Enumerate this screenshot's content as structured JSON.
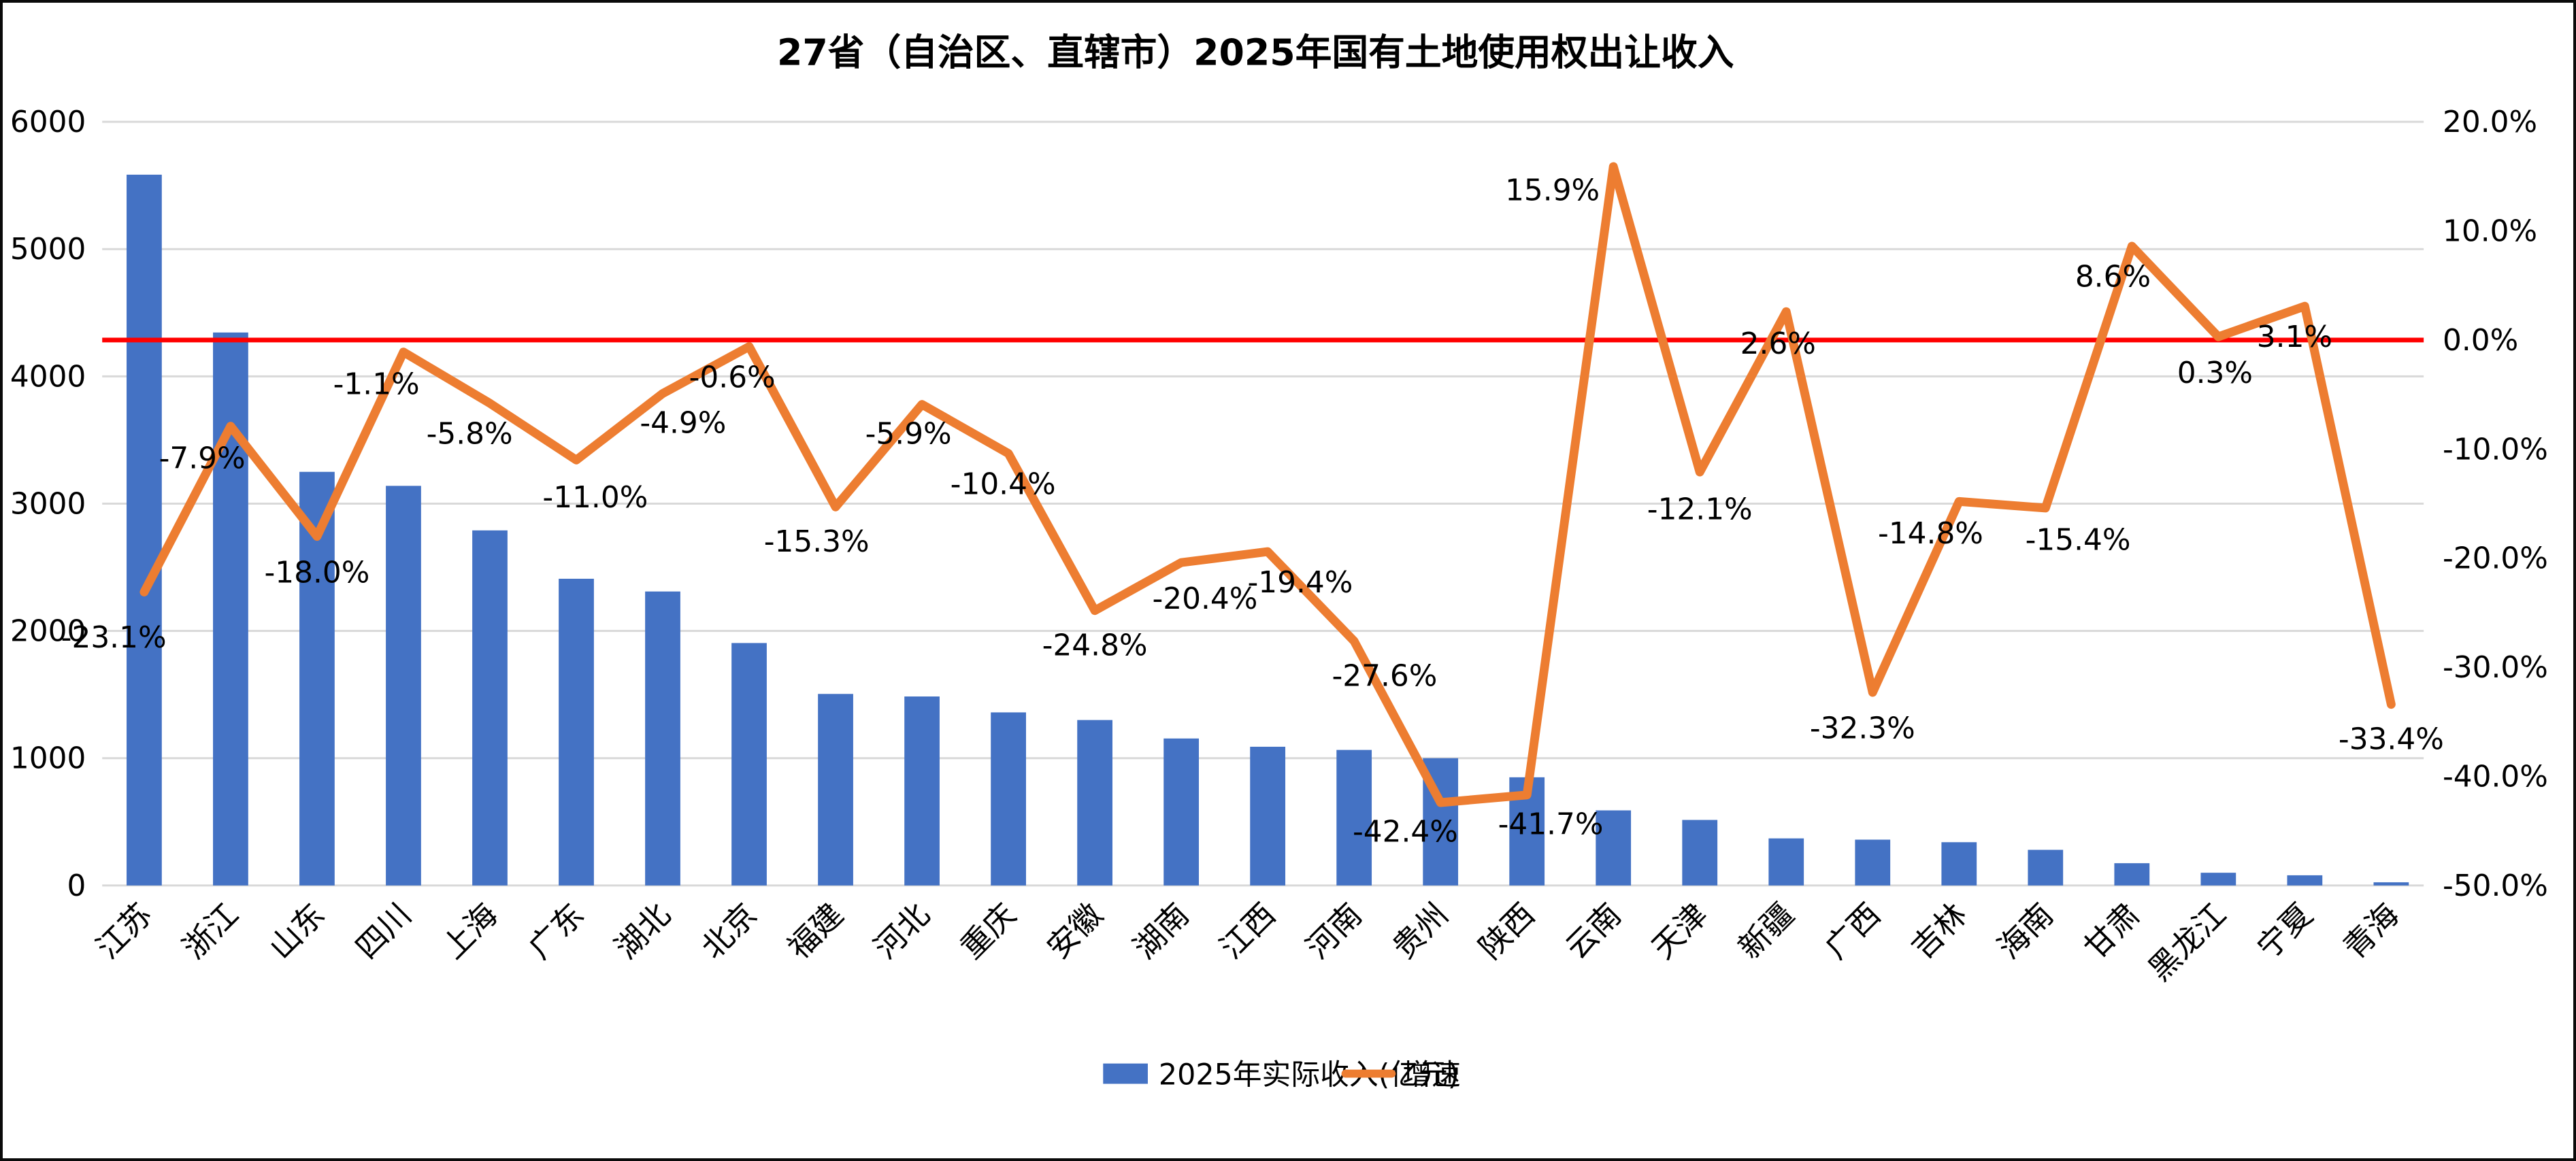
{
  "title": "27省（自治区、直辖市）2025年国有土地使用权出让收入",
  "legend": {
    "bar_label": "2025年实际收入(亿元)",
    "line_label": "增速"
  },
  "colors": {
    "bar": "#4472C4",
    "line": "#ED7D31",
    "zero_line": "#FF0000",
    "gridline": "#D9D9D9",
    "text": "#000000",
    "background": "#FFFFFF"
  },
  "chart_data": {
    "type": "bar",
    "combo": "bar + line (dual axis)",
    "title": "27省（自治区、直辖市）2025年国有土地使用权出让收入",
    "categories": [
      "江苏",
      "浙江",
      "山东",
      "四川",
      "上海",
      "广东",
      "湖北",
      "北京",
      "福建",
      "河北",
      "重庆",
      "安徽",
      "湖南",
      "江西",
      "河南",
      "贵州",
      "陕西",
      "云南",
      "天津",
      "新疆",
      "广西",
      "吉林",
      "海南",
      "甘肃",
      "黑龙江",
      "宁夏",
      "青海"
    ],
    "series": [
      {
        "name": "2025年实际收入(亿元)",
        "type": "bar",
        "axis": "left",
        "values": [
          5585,
          4345,
          3250,
          3140,
          2790,
          2410,
          2310,
          1905,
          1505,
          1485,
          1360,
          1300,
          1155,
          1090,
          1065,
          1000,
          850,
          590,
          515,
          370,
          360,
          340,
          280,
          175,
          100,
          80,
          25
        ]
      },
      {
        "name": "增速",
        "type": "line",
        "axis": "right",
        "values_percent": [
          -23.1,
          -7.9,
          -18.0,
          -1.1,
          -5.8,
          -11.0,
          -4.9,
          -0.6,
          -15.3,
          -5.9,
          -10.4,
          -24.8,
          -20.4,
          -19.4,
          -27.6,
          -42.4,
          -41.7,
          15.9,
          -12.1,
          2.6,
          -32.3,
          -14.8,
          -15.4,
          8.6,
          0.3,
          3.1,
          -33.4
        ],
        "labels": [
          "-23.1%",
          "-7.9%",
          "-18.0%",
          "-1.1%",
          "-5.8%",
          "-11.0%",
          "-4.9%",
          "-0.6%",
          "-15.3%",
          "-5.9%",
          "-10.4%",
          "-24.8%",
          "-20.4%",
          "-19.4%",
          "-27.6%",
          "-42.4%",
          "-41.7%",
          "15.9%",
          "-12.1%",
          "2.6%",
          "-32.3%",
          "-14.8%",
          "-15.4%",
          "8.6%",
          "0.3%",
          "3.1%",
          "-33.4%"
        ]
      }
    ],
    "left_axis": {
      "min": 0,
      "max": 6000,
      "step": 1000,
      "ticks": [
        "0",
        "1000",
        "2000",
        "3000",
        "4000",
        "5000",
        "6000"
      ]
    },
    "right_axis": {
      "min": -50,
      "max": 20,
      "step": 10,
      "ticks": [
        "20.0%",
        "10.0%",
        "0.0%",
        "-10.0%",
        "-20.0%",
        "-30.0%",
        "-40.0%",
        "-50.0%"
      ]
    },
    "reference_line": {
      "axis": "right",
      "value_percent": 0.0
    },
    "grid": true,
    "x_label_rotation_deg": 45,
    "legend_position": "bottom"
  }
}
